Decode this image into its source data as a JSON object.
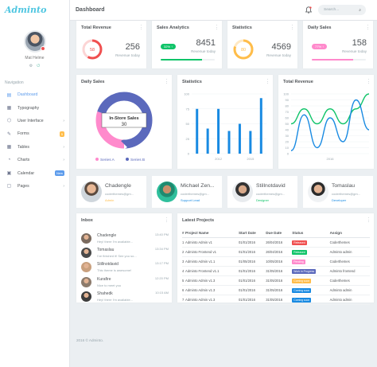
{
  "app": {
    "logo": "Adminto",
    "page_title": "Dashboard"
  },
  "search": {
    "placeholder": "Search..."
  },
  "profile": {
    "name": "Mat Helme"
  },
  "sidebar": {
    "section_title": "Navigation",
    "items": [
      {
        "label": "Dashboard",
        "icon": "dashboard-icon",
        "active": true,
        "arrow": false
      },
      {
        "label": "Typography",
        "icon": "typography-icon",
        "active": false,
        "arrow": false
      },
      {
        "label": "User Interface",
        "icon": "user-interface-icon",
        "active": false,
        "arrow": true
      },
      {
        "label": "Forms",
        "icon": "forms-icon",
        "active": false,
        "arrow": false,
        "badge": "5"
      },
      {
        "label": "Tables",
        "icon": "tables-icon",
        "active": false,
        "arrow": true
      },
      {
        "label": "Charts",
        "icon": "charts-icon",
        "active": false,
        "arrow": true
      },
      {
        "label": "Calendar",
        "icon": "calendar-icon",
        "active": false,
        "arrow": false,
        "badge": "New"
      },
      {
        "label": "Pages",
        "icon": "pages-icon",
        "active": false,
        "arrow": true
      }
    ]
  },
  "stats": [
    {
      "title": "Total Revenue",
      "ring_value": "58",
      "value": "256",
      "sub": "Revenue today",
      "color": "#f05050"
    },
    {
      "title": "Sales Analytics",
      "pill": "32% ↑",
      "value": "8451",
      "sub": "Revenue today",
      "color": "#10c469",
      "progress": 0.77
    },
    {
      "title": "Statistics",
      "ring_value": "80",
      "value": "4569",
      "sub": "Revenue today",
      "color": "#ffbd4a"
    },
    {
      "title": "Daily Sales",
      "pill": "77% ↑",
      "value": "158",
      "sub": "Revenue today",
      "color": "#ff8acc",
      "progress": 0.77
    }
  ],
  "chart_data": [
    {
      "type": "pie",
      "title": "Daily Sales",
      "center_label": "In-Store Sales",
      "center_value": "30",
      "series": [
        {
          "name": "Series A",
          "value": 30,
          "color": "#ff8acc"
        },
        {
          "name": "Series B",
          "value": 70,
          "color": "#5b69bc"
        }
      ]
    },
    {
      "type": "bar",
      "title": "Statistics",
      "ylim": [
        0,
        100
      ],
      "yticks": [
        0,
        25,
        50,
        75,
        100
      ],
      "xticks": [
        "2012",
        "2015"
      ],
      "values": [
        75,
        42,
        75,
        38,
        50,
        38,
        93
      ],
      "color": "#188ae2"
    },
    {
      "type": "line",
      "title": "Total Revenue",
      "ylim": [
        0,
        100
      ],
      "yticks": [
        0,
        10,
        20,
        30,
        40,
        50,
        60,
        70,
        80,
        90,
        100
      ],
      "xticks": [
        "2016"
      ],
      "series": [
        {
          "name": "A",
          "color": "#10c469",
          "values": [
            50,
            75,
            50,
            75,
            50,
            75,
            100
          ]
        },
        {
          "name": "B",
          "color": "#188ae2",
          "values": [
            5,
            65,
            10,
            60,
            20,
            90,
            40
          ]
        }
      ]
    }
  ],
  "users": [
    {
      "name": "Chadengle",
      "email": "coderthemes@gm...",
      "role": "Admin",
      "role_color": "#ffbd4a"
    },
    {
      "name": "Michael Zen...",
      "email": "coderthemes@gm...",
      "role": "Support Lead",
      "role_color": "#188ae2"
    },
    {
      "name": "Stillnotdavid",
      "email": "coderthemes@gm...",
      "role": "Designer",
      "role_color": "#10c469"
    },
    {
      "name": "Tomaslau",
      "email": "coderthemes@gm...",
      "role": "Developer",
      "role_color": "#188ae2"
    }
  ],
  "inbox": {
    "title": "Inbox",
    "items": [
      {
        "name": "Chadengle",
        "msg": "Hey! there I'm available...",
        "time": "13:40 PM"
      },
      {
        "name": "Tomaslau",
        "msg": "I've finished it! See you so...",
        "time": "13:34 PM"
      },
      {
        "name": "Stillnotdavid",
        "msg": "This theme is awesome!",
        "time": "13:17 PM"
      },
      {
        "name": "Kurafire",
        "msg": "Nice to meet you",
        "time": "12:20 PM"
      },
      {
        "name": "Shahedk",
        "msg": "Hey! there I'm available...",
        "time": "10:15 AM"
      }
    ]
  },
  "projects": {
    "title": "Latest Projects",
    "columns": [
      "#",
      "Project Name",
      "Start Date",
      "Due Date",
      "Status",
      "Assign"
    ],
    "rows": [
      {
        "n": "1",
        "name": "Adminto Admin v1",
        "start": "01/01/2016",
        "due": "26/04/2016",
        "status": "Released",
        "color": "#f05050",
        "assign": "Coderthemes"
      },
      {
        "n": "2",
        "name": "Adminto Frontend v1",
        "start": "01/01/2016",
        "due": "26/04/2016",
        "status": "Released",
        "color": "#10c469",
        "assign": "Adminto admin"
      },
      {
        "n": "3",
        "name": "Adminto Admin v1.1",
        "start": "01/05/2016",
        "due": "10/05/2016",
        "status": "Pending",
        "color": "#ff8acc",
        "assign": "Coderthemes"
      },
      {
        "n": "4",
        "name": "Adminto Frontend v1.1",
        "start": "01/01/2016",
        "due": "31/05/2016",
        "status": "Work in Progress",
        "color": "#5b69bc",
        "assign": "Adminto frontend"
      },
      {
        "n": "5",
        "name": "Adminto Admin v1.3",
        "start": "01/01/2016",
        "due": "31/05/2016",
        "status": "Coming soon",
        "color": "#ffbd4a",
        "assign": "Coderthemes"
      },
      {
        "n": "6",
        "name": "Adminto Admin v1.3",
        "start": "01/01/2016",
        "due": "31/05/2016",
        "status": "Coming soon",
        "color": "#188ae2",
        "assign": "Adminto admin"
      },
      {
        "n": "7",
        "name": "Adminto Admin v1.3",
        "start": "01/01/2016",
        "due": "31/05/2016",
        "status": "Coming soon",
        "color": "#188ae2",
        "assign": "Adminto admin"
      }
    ]
  },
  "footer": "2016 © Adminto."
}
